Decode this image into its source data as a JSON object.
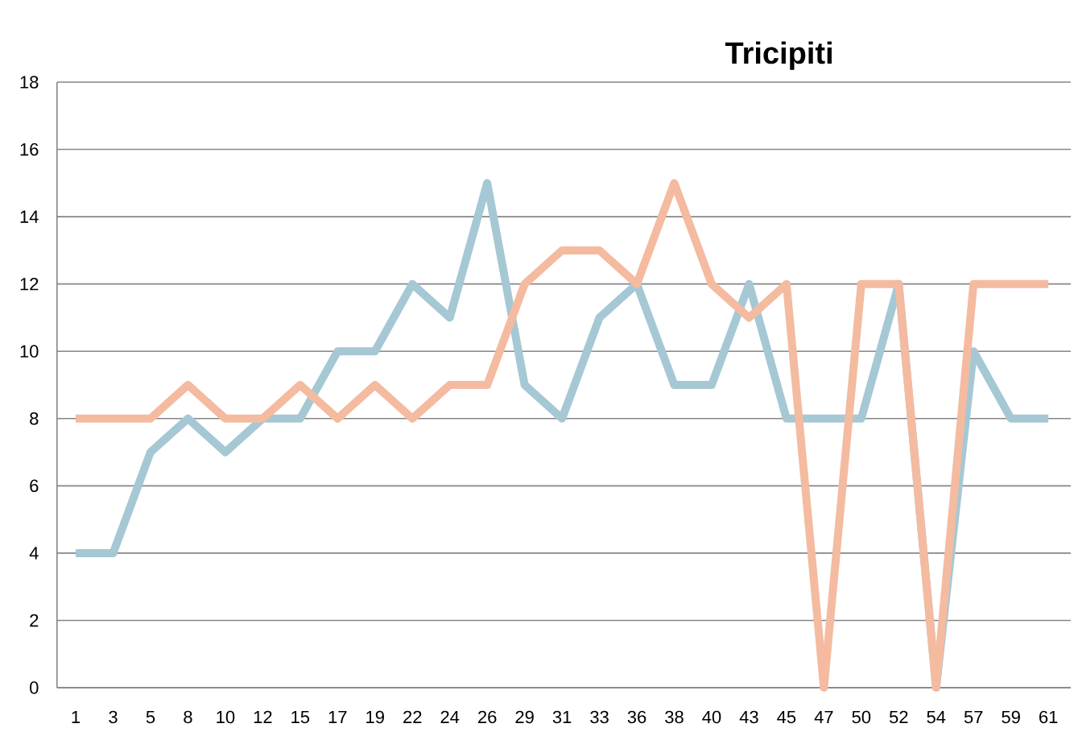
{
  "chart_data": {
    "type": "line",
    "title": "Tricipiti",
    "categories": [
      "1",
      "3",
      "5",
      "8",
      "10",
      "12",
      "15",
      "17",
      "19",
      "22",
      "24",
      "26",
      "29",
      "31",
      "33",
      "36",
      "38",
      "40",
      "43",
      "45",
      "47",
      "50",
      "52",
      "54",
      "57",
      "59",
      "61"
    ],
    "series": [
      {
        "color": "#a5c8d4",
        "values": [
          4,
          4,
          7,
          8,
          7,
          8,
          8,
          10,
          10,
          12,
          11,
          15,
          9,
          8,
          11,
          12,
          9,
          9,
          12,
          8,
          8,
          8,
          12,
          0,
          10,
          8,
          8
        ]
      },
      {
        "color": "#f4bba0",
        "values": [
          8,
          8,
          8,
          9,
          8,
          8,
          9,
          8,
          9,
          8,
          9,
          9,
          12,
          13,
          13,
          12,
          15,
          12,
          11,
          12,
          0,
          12,
          12,
          0,
          12,
          12,
          12
        ]
      }
    ],
    "ylim": [
      0,
      18
    ],
    "yticks": [
      0,
      2,
      4,
      6,
      8,
      10,
      12,
      14,
      16,
      18
    ],
    "grid": "y",
    "marker": "none",
    "line_style": "solid"
  }
}
